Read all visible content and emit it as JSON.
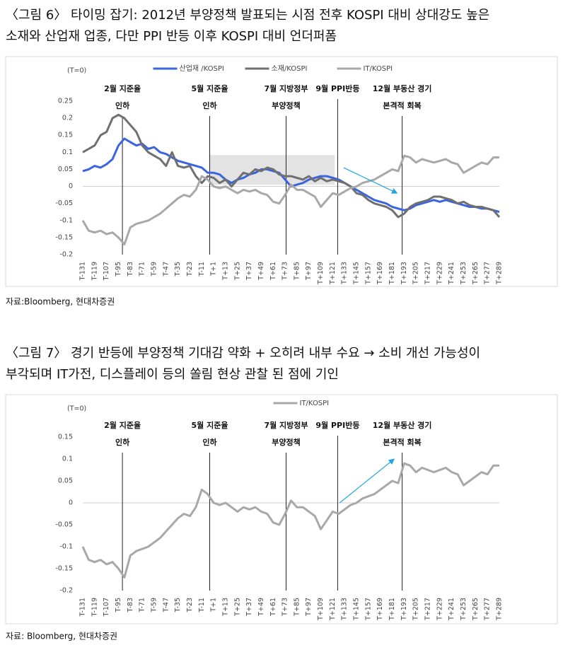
{
  "captions": [
    [
      "〈그림 6〉 타이밍 잡기: 2012년 부양정책 발표되는 시점 전후 KOSPI 대비 상대강도 높은",
      "소재와 산업재 업종, 다만 PPI 반등 이후 KOSPI 대비 언더퍼폼"
    ],
    [
      "〈그림 7〉 경기 반등에 부양정책 기대감 약화 + 오히려 내부 수요 → 소비 개선 가능성이",
      "부각되며 IT가전, 디스플레이 등의 쏠림 현상 관찰 된 점에 기인"
    ]
  ],
  "sources": [
    "자료:Bloomberg, 현대차증권",
    "자료: Bloomberg, 현대차증권"
  ],
  "chart_data": [
    {
      "type": "line",
      "y_note": "(T=0)",
      "legend": "top",
      "zero_line": true,
      "x": [
        -131,
        -125,
        -119,
        -113,
        -107,
        -101,
        -95,
        -89,
        -83,
        -77,
        -71,
        -65,
        -59,
        -53,
        -47,
        -41,
        -35,
        -29,
        -23,
        -17,
        -11,
        -5,
        1,
        7,
        13,
        19,
        25,
        31,
        37,
        43,
        49,
        55,
        61,
        67,
        73,
        79,
        85,
        91,
        97,
        103,
        109,
        115,
        121,
        127,
        133,
        139,
        145,
        151,
        157,
        163,
        169,
        175,
        181,
        187,
        193,
        199,
        205,
        211,
        217,
        223,
        229,
        235,
        241,
        247,
        253,
        259,
        265,
        271,
        277,
        283,
        289
      ],
      "xlim": [
        -131,
        289
      ],
      "xticks": [
        {
          "value": -131,
          "label": "T-131"
        },
        {
          "value": -119,
          "label": "T-119"
        },
        {
          "value": -107,
          "label": "T-107"
        },
        {
          "value": -95,
          "label": "T-95"
        },
        {
          "value": -83,
          "label": "T-83"
        },
        {
          "value": -71,
          "label": "T-71"
        },
        {
          "value": -59,
          "label": "T-59"
        },
        {
          "value": -47,
          "label": "T-47"
        },
        {
          "value": -35,
          "label": "T-35"
        },
        {
          "value": -23,
          "label": "T-23"
        },
        {
          "value": -11,
          "label": "T-11"
        },
        {
          "value": 1,
          "label": "T+1"
        },
        {
          "value": 13,
          "label": "T+13"
        },
        {
          "value": 25,
          "label": "T+25"
        },
        {
          "value": 37,
          "label": "T+37"
        },
        {
          "value": 49,
          "label": "T+49"
        },
        {
          "value": 61,
          "label": "T+61"
        },
        {
          "value": 73,
          "label": "T+73"
        },
        {
          "value": 85,
          "label": "T+85"
        },
        {
          "value": 97,
          "label": "T+97"
        },
        {
          "value": 109,
          "label": "T+109"
        },
        {
          "value": 121,
          "label": "T+121"
        },
        {
          "value": 133,
          "label": "T+133"
        },
        {
          "value": 145,
          "label": "T+145"
        },
        {
          "value": 157,
          "label": "T+157"
        },
        {
          "value": 169,
          "label": "T+169"
        },
        {
          "value": 181,
          "label": "T+181"
        },
        {
          "value": 193,
          "label": "T+193"
        },
        {
          "value": 205,
          "label": "T+205"
        },
        {
          "value": 217,
          "label": "T+217"
        },
        {
          "value": 229,
          "label": "T+229"
        },
        {
          "value": 241,
          "label": "T+241"
        },
        {
          "value": 253,
          "label": "T+253"
        },
        {
          "value": 265,
          "label": "T+265"
        },
        {
          "value": 277,
          "label": "T+277"
        },
        {
          "value": 289,
          "label": "T+289"
        }
      ],
      "ylim": [
        -0.2,
        0.25
      ],
      "yticks": [
        0.25,
        0.2,
        0.15,
        0.1,
        0.05,
        0,
        -0.05,
        -0.1,
        -0.15,
        -0.2
      ],
      "series": [
        {
          "name": "산업재 /KOSPI",
          "color": "#3a64e0",
          "values": [
            0.045,
            0.05,
            0.06,
            0.055,
            0.065,
            0.08,
            0.12,
            0.14,
            0.13,
            0.12,
            0.125,
            0.11,
            0.115,
            0.1,
            0.095,
            0.085,
            0.075,
            0.07,
            0.065,
            0.06,
            0.055,
            0.04,
            0.04,
            0.035,
            0.02,
            0.01,
            0.02,
            0.025,
            0.035,
            0.04,
            0.05,
            0.05,
            0.045,
            0.04,
            0.02,
            0.0,
            0.005,
            0.01,
            0.02,
            0.025,
            0.03,
            0.03,
            0.025,
            0.02,
            0.01,
            0.0,
            -0.01,
            -0.02,
            -0.03,
            -0.04,
            -0.045,
            -0.05,
            -0.06,
            -0.065,
            -0.07,
            -0.065,
            -0.055,
            -0.05,
            -0.045,
            -0.04,
            -0.045,
            -0.04,
            -0.045,
            -0.05,
            -0.055,
            -0.06,
            -0.06,
            -0.065,
            -0.065,
            -0.07,
            -0.075
          ]
        },
        {
          "name": "소재/KOSPI",
          "color": "#707070",
          "values": [
            0.1,
            0.11,
            0.12,
            0.15,
            0.16,
            0.2,
            0.21,
            0.2,
            0.18,
            0.16,
            0.12,
            0.1,
            0.09,
            0.08,
            0.06,
            0.1,
            0.06,
            0.055,
            0.06,
            0.03,
            0.01,
            0.03,
            0.025,
            0.01,
            0.02,
            0.0,
            0.02,
            0.04,
            0.035,
            0.05,
            0.045,
            0.055,
            0.05,
            0.035,
            0.03,
            0.03,
            0.025,
            0.02,
            0.03,
            0.015,
            0.025,
            0.015,
            0.02,
            0.015,
            0.01,
            0.0,
            -0.02,
            -0.025,
            -0.04,
            -0.05,
            -0.055,
            -0.06,
            -0.07,
            -0.09,
            -0.08,
            -0.06,
            -0.05,
            -0.045,
            -0.04,
            -0.03,
            -0.03,
            -0.035,
            -0.04,
            -0.05,
            -0.045,
            -0.055,
            -0.06,
            -0.06,
            -0.065,
            -0.07,
            -0.09
          ]
        },
        {
          "name": "IT/KOSPI",
          "color": "#a8a8a8",
          "values": [
            -0.1,
            -0.13,
            -0.135,
            -0.13,
            -0.14,
            -0.135,
            -0.15,
            -0.17,
            -0.12,
            -0.11,
            -0.105,
            -0.1,
            -0.09,
            -0.08,
            -0.065,
            -0.05,
            -0.035,
            -0.025,
            -0.03,
            -0.01,
            0.03,
            0.02,
            0.0,
            -0.005,
            0.0,
            -0.01,
            -0.02,
            -0.01,
            -0.015,
            -0.01,
            -0.02,
            -0.025,
            -0.045,
            -0.05,
            -0.025,
            0.005,
            -0.01,
            -0.01,
            -0.02,
            -0.03,
            -0.06,
            -0.04,
            -0.02,
            -0.025,
            -0.015,
            -0.005,
            0.0,
            0.01,
            0.015,
            0.02,
            0.03,
            0.04,
            0.05,
            0.045,
            0.09,
            0.085,
            0.07,
            0.08,
            0.075,
            0.07,
            0.075,
            0.08,
            0.07,
            0.065,
            0.04,
            0.05,
            0.06,
            0.07,
            0.065,
            0.085,
            0.085
          ]
        }
      ],
      "annotations": [
        {
          "x": -91,
          "label": [
            "2월 지준율",
            "인하"
          ]
        },
        {
          "x": -3,
          "label": [
            "5월 지준율",
            "인하"
          ]
        },
        {
          "x": 74,
          "label": [
            "7월 지방정부",
            "부양정책"
          ]
        },
        {
          "x": 126,
          "label": [
            "9월 PPI반등"
          ]
        },
        {
          "x": 191,
          "label": [
            "12월 부동산 경기",
            "본격적 회복"
          ]
        }
      ],
      "shade": {
        "x": [
          -3,
          123
        ],
        "y": [
          0.005,
          0.092
        ],
        "color": "#e3e3e3"
      },
      "arrows": [
        {
          "from": [
            132,
            0.055
          ],
          "to": [
            186,
            -0.02
          ],
          "color": "#1fa6e0"
        }
      ]
    },
    {
      "type": "line",
      "y_note": "(T=0)",
      "legend": "top",
      "zero_line": true,
      "x": [
        -131,
        -125,
        -119,
        -113,
        -107,
        -101,
        -95,
        -89,
        -83,
        -77,
        -71,
        -65,
        -59,
        -53,
        -47,
        -41,
        -35,
        -29,
        -23,
        -17,
        -11,
        -5,
        1,
        7,
        13,
        19,
        25,
        31,
        37,
        43,
        49,
        55,
        61,
        67,
        73,
        79,
        85,
        91,
        97,
        103,
        109,
        115,
        121,
        127,
        133,
        139,
        145,
        151,
        157,
        163,
        169,
        175,
        181,
        187,
        193,
        199,
        205,
        211,
        217,
        223,
        229,
        235,
        241,
        247,
        253,
        259,
        265,
        271,
        277,
        283,
        289
      ],
      "xlim": [
        -131,
        289
      ],
      "xticks": [
        {
          "value": -131,
          "label": "T-131"
        },
        {
          "value": -119,
          "label": "T-119"
        },
        {
          "value": -107,
          "label": "T-107"
        },
        {
          "value": -95,
          "label": "T-95"
        },
        {
          "value": -83,
          "label": "T-83"
        },
        {
          "value": -71,
          "label": "T-71"
        },
        {
          "value": -59,
          "label": "T-59"
        },
        {
          "value": -47,
          "label": "T-47"
        },
        {
          "value": -35,
          "label": "T-35"
        },
        {
          "value": -23,
          "label": "T-23"
        },
        {
          "value": -11,
          "label": "T-11"
        },
        {
          "value": 1,
          "label": "T+1"
        },
        {
          "value": 13,
          "label": "T+13"
        },
        {
          "value": 25,
          "label": "T+25"
        },
        {
          "value": 37,
          "label": "T+37"
        },
        {
          "value": 49,
          "label": "T+49"
        },
        {
          "value": 61,
          "label": "T+61"
        },
        {
          "value": 73,
          "label": "T+73"
        },
        {
          "value": 85,
          "label": "T+85"
        },
        {
          "value": 97,
          "label": "T+97"
        },
        {
          "value": 109,
          "label": "T+109"
        },
        {
          "value": 121,
          "label": "T+121"
        },
        {
          "value": 133,
          "label": "T+133"
        },
        {
          "value": 145,
          "label": "T+145"
        },
        {
          "value": 157,
          "label": "T+157"
        },
        {
          "value": 169,
          "label": "T+169"
        },
        {
          "value": 181,
          "label": "T+181"
        },
        {
          "value": 193,
          "label": "T+193"
        },
        {
          "value": 205,
          "label": "T+205"
        },
        {
          "value": 217,
          "label": "T+217"
        },
        {
          "value": 229,
          "label": "T+229"
        },
        {
          "value": 241,
          "label": "T+241"
        },
        {
          "value": 253,
          "label": "T+253"
        },
        {
          "value": 265,
          "label": "T+265"
        },
        {
          "value": 277,
          "label": "T+277"
        },
        {
          "value": 289,
          "label": "T+289"
        }
      ],
      "ylim": [
        -0.2,
        0.2
      ],
      "yticks": [
        0.15,
        0.1,
        0.05,
        0,
        -0.05,
        -0.1,
        -0.15,
        -0.2
      ],
      "series": [
        {
          "name": "IT/KOSPI",
          "color": "#a8a8a8",
          "values": [
            -0.1,
            -0.13,
            -0.135,
            -0.13,
            -0.14,
            -0.135,
            -0.15,
            -0.17,
            -0.12,
            -0.11,
            -0.105,
            -0.1,
            -0.09,
            -0.08,
            -0.065,
            -0.05,
            -0.035,
            -0.025,
            -0.03,
            -0.01,
            0.03,
            0.02,
            0.0,
            -0.005,
            0.0,
            -0.01,
            -0.02,
            -0.01,
            -0.015,
            -0.01,
            -0.02,
            -0.025,
            -0.045,
            -0.05,
            -0.025,
            0.005,
            -0.01,
            -0.01,
            -0.02,
            -0.03,
            -0.06,
            -0.04,
            -0.02,
            -0.025,
            -0.015,
            -0.005,
            0.0,
            0.01,
            0.015,
            0.02,
            0.03,
            0.04,
            0.05,
            0.045,
            0.09,
            0.085,
            0.07,
            0.08,
            0.075,
            0.07,
            0.075,
            0.08,
            0.07,
            0.065,
            0.04,
            0.05,
            0.06,
            0.07,
            0.065,
            0.085,
            0.085
          ]
        }
      ],
      "annotations": [
        {
          "x": -91,
          "label": [
            "2월 지준율",
            "인하"
          ]
        },
        {
          "x": -3,
          "label": [
            "5월 지준율",
            "인하"
          ]
        },
        {
          "x": 74,
          "label": [
            "7월 지방정부",
            "부양정책"
          ]
        },
        {
          "x": 126,
          "label": [
            "9월 PPI반등"
          ]
        },
        {
          "x": 191,
          "label": [
            "12월 부동산 경기",
            "본격적 회복"
          ]
        }
      ],
      "arrows": [
        {
          "from": [
            128,
            0.0
          ],
          "to": [
            183,
            0.1
          ],
          "color": "#1fa6e0"
        }
      ]
    }
  ]
}
